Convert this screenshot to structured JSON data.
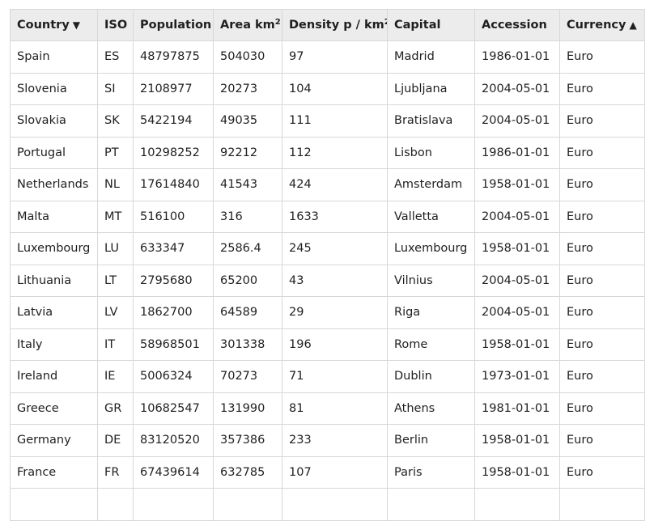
{
  "table": {
    "headers": [
      {
        "label": "Country",
        "sort": "▼"
      },
      {
        "label": "ISO",
        "sort": ""
      },
      {
        "label": "Population",
        "sort": ""
      },
      {
        "label": "Area km",
        "sup": "2",
        "sort": ""
      },
      {
        "label": "Density p / km",
        "sup": "2",
        "sort": ""
      },
      {
        "label": "Capital",
        "sort": ""
      },
      {
        "label": "Accession",
        "sort": ""
      },
      {
        "label": "Currency",
        "sort": "▲"
      }
    ],
    "rows": [
      [
        "Spain",
        "ES",
        "48797875",
        "504030",
        "97",
        "Madrid",
        "1986-01-01",
        "Euro"
      ],
      [
        "Slovenia",
        "SI",
        "2108977",
        "20273",
        "104",
        "Ljubljana",
        "2004-05-01",
        "Euro"
      ],
      [
        "Slovakia",
        "SK",
        "5422194",
        "49035",
        "111",
        "Bratislava",
        "2004-05-01",
        "Euro"
      ],
      [
        "Portugal",
        "PT",
        "10298252",
        "92212",
        "112",
        "Lisbon",
        "1986-01-01",
        "Euro"
      ],
      [
        "Netherlands",
        "NL",
        "17614840",
        "41543",
        "424",
        "Amsterdam",
        "1958-01-01",
        "Euro"
      ],
      [
        "Malta",
        "MT",
        "516100",
        "316",
        "1633",
        "Valletta",
        "2004-05-01",
        "Euro"
      ],
      [
        "Luxembourg",
        "LU",
        "633347",
        "2586.4",
        "245",
        "Luxembourg",
        "1958-01-01",
        "Euro"
      ],
      [
        "Lithuania",
        "LT",
        "2795680",
        "65200",
        "43",
        "Vilnius",
        "2004-05-01",
        "Euro"
      ],
      [
        "Latvia",
        "LV",
        "1862700",
        "64589",
        "29",
        "Riga",
        "2004-05-01",
        "Euro"
      ],
      [
        "Italy",
        "IT",
        "58968501",
        "301338",
        "196",
        "Rome",
        "1958-01-01",
        "Euro"
      ],
      [
        "Ireland",
        "IE",
        "5006324",
        "70273",
        "71",
        "Dublin",
        "1973-01-01",
        "Euro"
      ],
      [
        "Greece",
        "GR",
        "10682547",
        "131990",
        "81",
        "Athens",
        "1981-01-01",
        "Euro"
      ],
      [
        "Germany",
        "DE",
        "83120520",
        "357386",
        "233",
        "Berlin",
        "1958-01-01",
        "Euro"
      ],
      [
        "France",
        "FR",
        "67439614",
        "632785",
        "107",
        "Paris",
        "1958-01-01",
        "Euro"
      ],
      [
        "",
        "",
        "",
        "",
        "",
        "",
        "",
        ""
      ]
    ]
  }
}
